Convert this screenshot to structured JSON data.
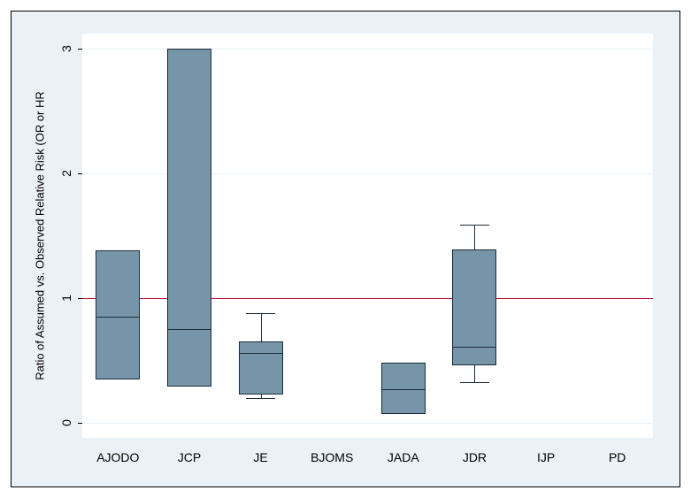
{
  "chart": {
    "type": "boxplot",
    "background_outer": "#eaf2f7",
    "background_plot": "#ffffff",
    "frame_border_color": "#000000",
    "box_fill": "#7795a9",
    "box_border": "#1a2b3a",
    "grid_color": "#eaf2f7",
    "refline_color": "#c01030",
    "refline_value": 1,
    "ylabel": "Ratio of Assumed vs. Observed Relative Risk (OR or HR",
    "ylabel_fontsize": 13,
    "tick_fontsize": 14,
    "ylim": [
      -0.12,
      3.12
    ],
    "yticks": [
      0,
      1,
      2,
      3
    ],
    "ytick_labels": [
      "0",
      "1",
      "2",
      "3"
    ],
    "categories": [
      "AJODO",
      "JCP",
      "JE",
      "BJOMS",
      "JADA",
      "JDR",
      "IJP",
      "PD"
    ],
    "boxes": {
      "AJODO": {
        "q1": 0.35,
        "median": 0.85,
        "q3": 1.38,
        "whisker_low": 0.35,
        "whisker_high": 1.38
      },
      "JCP": {
        "q1": 0.29,
        "median": 0.75,
        "q3": 3.0,
        "whisker_low": 0.29,
        "whisker_high": 3.0
      },
      "JE": {
        "q1": 0.23,
        "median": 0.56,
        "q3": 0.65,
        "whisker_low": 0.2,
        "whisker_high": 0.88
      },
      "BJOMS": null,
      "JADA": {
        "q1": 0.07,
        "median": 0.27,
        "q3": 0.48,
        "whisker_low": 0.07,
        "whisker_high": 0.48
      },
      "JDR": {
        "q1": 0.46,
        "median": 0.61,
        "q3": 1.39,
        "whisker_low": 0.33,
        "whisker_high": 1.59
      },
      "IJP": null,
      "PD": null
    },
    "box_rel_width": 0.62,
    "cap_rel_width": 0.4
  }
}
